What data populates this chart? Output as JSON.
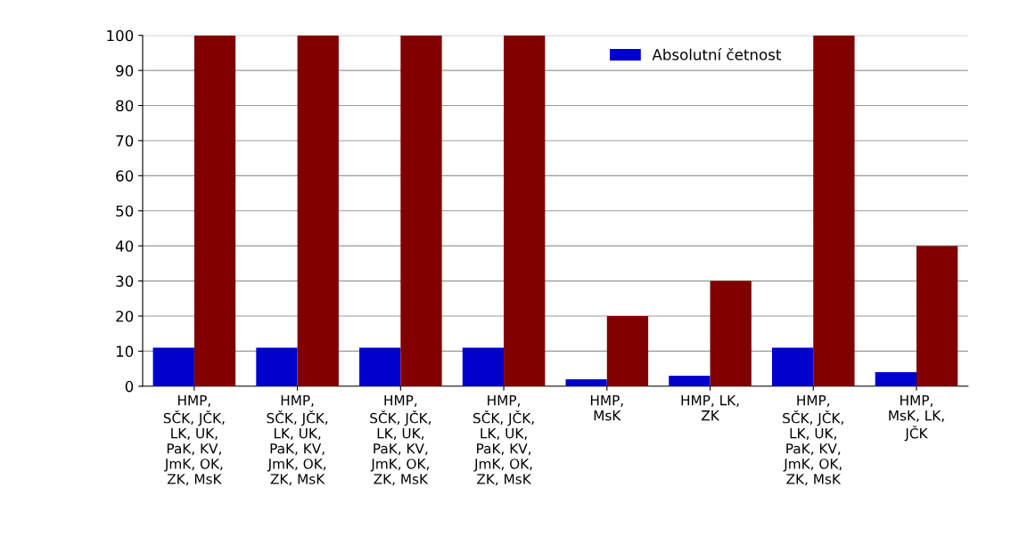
{
  "chart_data": {
    "type": "bar",
    "categories": [
      "HMP,\nSČK, JČK,\nLK, UK,\nPaK, KV,\nJmK, OK,\nZK, MsK",
      "HMP,\nSČK, JČK,\nLK, UK,\nPaK, KV,\nJmK, OK,\nZK, MsK",
      "HMP,\nSČK, JČK,\nLK, UK,\nPaK, KV,\nJmK, OK,\nZK, MsK",
      "HMP,\nSČK, JČK,\nLK, UK,\nPaK, KV,\nJmK, OK,\nZK, MsK",
      "HMP,\nMsK",
      "HMP, LK,\nZK",
      "HMP,\nSČK, JČK,\nLK, UK,\nPaK, KV,\nJmK, OK,\nZK, MsK",
      "HMP,\nMsK, LK,\nJČK"
    ],
    "series": [
      {
        "name": "Absolutní četnost",
        "color": "#0000cc",
        "values": [
          11,
          11,
          11,
          11,
          2,
          3,
          11,
          4
        ]
      },
      {
        "color": "#800000",
        "values": [
          100,
          100,
          100,
          100,
          20,
          30,
          100,
          40
        ]
      }
    ],
    "ylim": [
      0,
      100
    ],
    "yticks": [
      0,
      10,
      20,
      30,
      40,
      50,
      60,
      70,
      80,
      90,
      100
    ],
    "grid": "y",
    "legend": "top right"
  }
}
